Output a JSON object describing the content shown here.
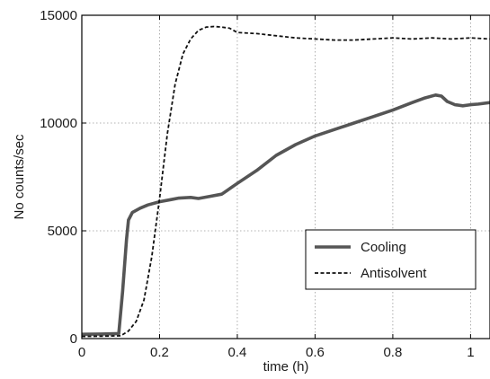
{
  "chart_data": {
    "type": "line",
    "title": "",
    "xlabel": "time (h)",
    "ylabel": "No counts/sec",
    "xlim": [
      0,
      1.05
    ],
    "ylim": [
      0,
      15000
    ],
    "xticks": [
      0,
      0.2,
      0.4,
      0.6,
      0.8,
      1
    ],
    "xtick_labels": [
      "0",
      "0.2",
      "0.4",
      "0.6",
      "0.8",
      "1"
    ],
    "yticks": [
      0,
      5000,
      10000,
      15000
    ],
    "ytick_labels": [
      "0",
      "5000",
      "10000",
      "15000"
    ],
    "grid": true,
    "legend_position": "bottom-right",
    "series": [
      {
        "name": "Cooling",
        "style": "solid-thick",
        "color": "#555555",
        "x": [
          0,
          0.05,
          0.095,
          0.105,
          0.115,
          0.12,
          0.13,
          0.15,
          0.17,
          0.2,
          0.23,
          0.25,
          0.28,
          0.3,
          0.33,
          0.36,
          0.4,
          0.45,
          0.5,
          0.55,
          0.6,
          0.65,
          0.7,
          0.75,
          0.8,
          0.85,
          0.88,
          0.91,
          0.925,
          0.94,
          0.96,
          0.98,
          1.0,
          1.02,
          1.05
        ],
        "y": [
          200,
          210,
          230,
          2200,
          4600,
          5500,
          5850,
          6050,
          6200,
          6350,
          6450,
          6520,
          6550,
          6500,
          6600,
          6700,
          7200,
          7800,
          8500,
          9000,
          9400,
          9700,
          10000,
          10300,
          10600,
          10950,
          11150,
          11300,
          11250,
          11000,
          10850,
          10800,
          10850,
          10880,
          10950
        ]
      },
      {
        "name": "Antisolvent",
        "style": "dashed",
        "color": "#111111",
        "x": [
          0,
          0.05,
          0.1,
          0.12,
          0.14,
          0.16,
          0.18,
          0.2,
          0.22,
          0.24,
          0.26,
          0.28,
          0.3,
          0.32,
          0.34,
          0.36,
          0.38,
          0.4,
          0.45,
          0.5,
          0.55,
          0.6,
          0.65,
          0.7,
          0.75,
          0.8,
          0.85,
          0.9,
          0.95,
          1.0,
          1.05
        ],
        "y": [
          100,
          110,
          130,
          350,
          800,
          1800,
          3800,
          6500,
          9500,
          11800,
          13200,
          13900,
          14300,
          14450,
          14480,
          14450,
          14400,
          14200,
          14150,
          14050,
          13950,
          13900,
          13850,
          13850,
          13900,
          13950,
          13900,
          13950,
          13900,
          13950,
          13900
        ]
      }
    ]
  }
}
